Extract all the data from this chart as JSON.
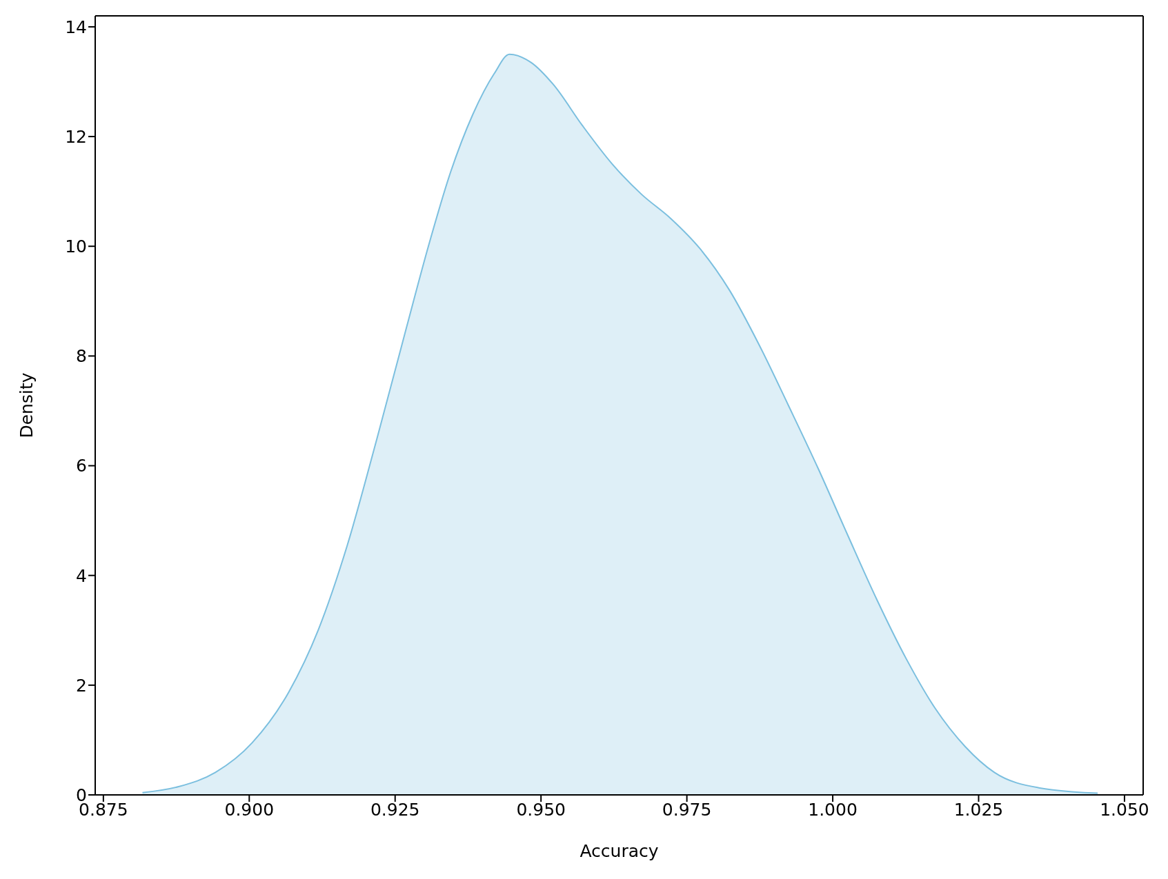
{
  "chart_data": {
    "type": "area",
    "xlabel": "Accuracy",
    "ylabel": "Density",
    "x": [
      0.8817,
      0.8879,
      0.8942,
      0.9005,
      0.9068,
      0.9118,
      0.9168,
      0.9219,
      0.9269,
      0.9307,
      0.9345,
      0.9383,
      0.942,
      0.9446,
      0.9483,
      0.9521,
      0.9571,
      0.9622,
      0.9672,
      0.9723,
      0.9773,
      0.9823,
      0.9874,
      0.9924,
      0.9975,
      1.0025,
      1.0076,
      1.0126,
      1.0176,
      1.0227,
      1.0277,
      1.0353,
      1.0454
    ],
    "series": [
      {
        "color": "#7bbfdf",
        "values": [
          0.04,
          0.15,
          0.41,
          0.95,
          1.88,
          3.0,
          4.55,
          6.5,
          8.5,
          10.0,
          11.35,
          12.4,
          13.15,
          13.5,
          13.35,
          12.95,
          12.2,
          11.5,
          10.95,
          10.5,
          9.95,
          9.2,
          8.2,
          7.1,
          5.95,
          4.75,
          3.55,
          2.48,
          1.57,
          0.88,
          0.41,
          0.13,
          0.03
        ]
      }
    ],
    "xlim": [
      0.8736,
      1.0532
    ],
    "xticks": [
      {
        "value": 0.875,
        "label": "0.875"
      },
      {
        "value": 0.9,
        "label": "0.900"
      },
      {
        "value": 0.925,
        "label": "0.925"
      },
      {
        "value": 0.95,
        "label": "0.950"
      },
      {
        "value": 0.975,
        "label": "0.975"
      },
      {
        "value": 1.0,
        "label": "1.000"
      },
      {
        "value": 1.025,
        "label": "1.025"
      },
      {
        "value": 1.05,
        "label": "1.050"
      }
    ],
    "ylim": [
      0,
      14.2
    ],
    "yticks": [
      0,
      2,
      4,
      6,
      8,
      10,
      12,
      14
    ]
  }
}
